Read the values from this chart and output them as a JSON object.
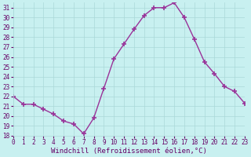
{
  "x": [
    0,
    1,
    2,
    3,
    4,
    5,
    6,
    7,
    8,
    9,
    10,
    11,
    12,
    13,
    14,
    15,
    16,
    17,
    18,
    19,
    20,
    21,
    22,
    23
  ],
  "y": [
    22,
    21.2,
    21.2,
    20.7,
    20.2,
    19.5,
    19.2,
    18.2,
    19.8,
    22.8,
    25.8,
    27.3,
    28.8,
    30.2,
    31.0,
    31.0,
    31.5,
    30.0,
    27.8,
    25.5,
    24.3,
    23.0,
    22.5,
    21.3
  ],
  "line_color": "#993399",
  "marker": "+",
  "marker_size": 4,
  "marker_lw": 1.2,
  "bg_color": "#c8f0f0",
  "grid_color": "#aad8d8",
  "xlabel": "Windchill (Refroidissement éolien,°C)",
  "xlabel_color": "#660066",
  "tick_color": "#660066",
  "ylim": [
    18,
    31.5
  ],
  "xlim": [
    0,
    23
  ],
  "yticks": [
    18,
    19,
    20,
    21,
    22,
    23,
    24,
    25,
    26,
    27,
    28,
    29,
    30,
    31
  ],
  "xticks": [
    0,
    1,
    2,
    3,
    4,
    5,
    6,
    7,
    8,
    9,
    10,
    11,
    12,
    13,
    14,
    15,
    16,
    17,
    18,
    19,
    20,
    21,
    22,
    23
  ],
  "font_family": "monospace",
  "linewidth": 1.0
}
